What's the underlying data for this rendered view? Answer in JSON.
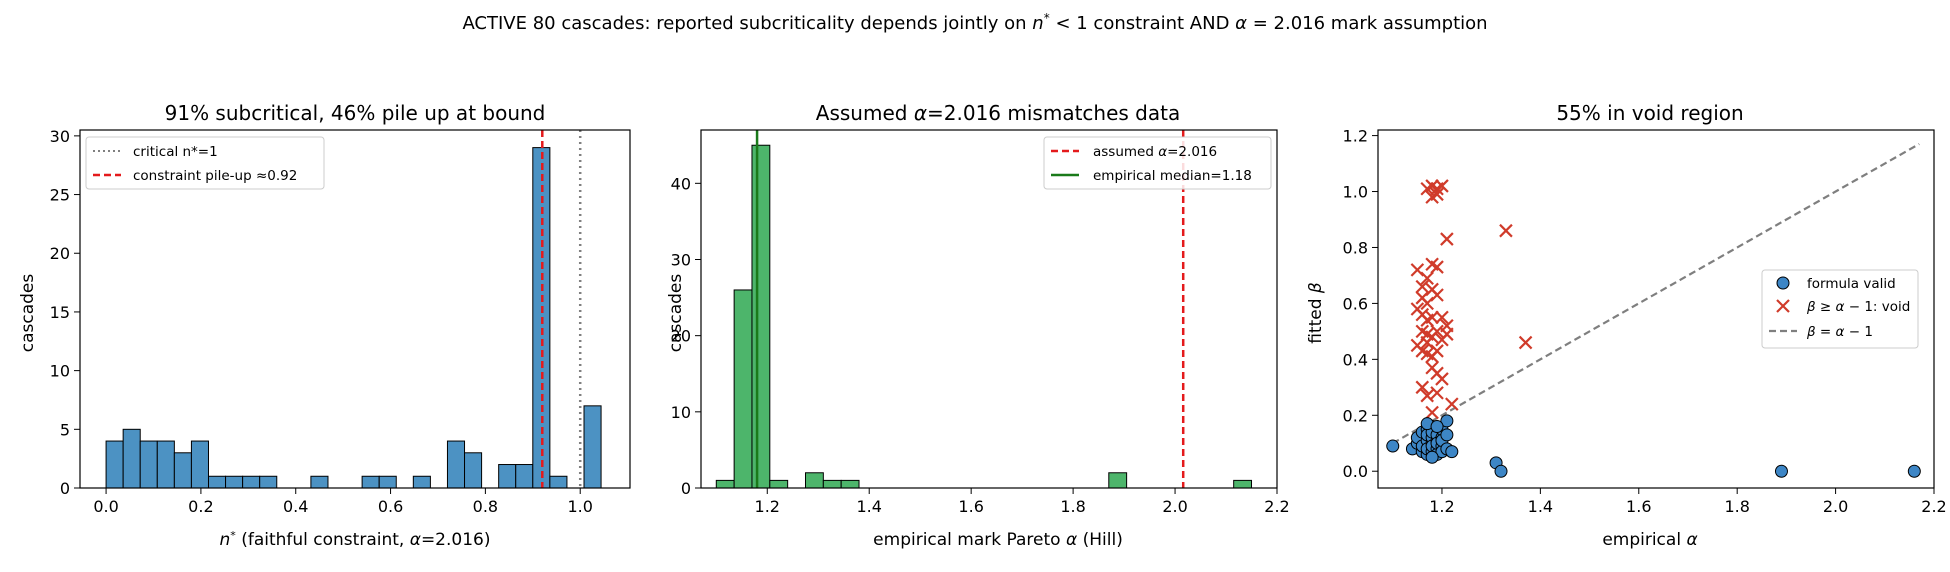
{
  "figure": {
    "title_parts": [
      "ACTIVE 80 cascades: reported subcriticality depends jointly on ",
      "n",
      "*",
      " < 1 constraint AND ",
      "α",
      " = 2.016 mark assumption"
    ]
  },
  "chart_data": [
    {
      "type": "bar",
      "title": "91% subcritical, 46% pile up at bound",
      "xlabel_parts": [
        "n",
        "*",
        " (faithful constraint, ",
        "α",
        "=2.016)"
      ],
      "ylabel": "cascades",
      "xlim": [
        -0.055,
        1.105
      ],
      "ylim": [
        0,
        30.5
      ],
      "xticks": [
        0.0,
        0.2,
        0.4,
        0.6,
        0.8,
        1.0
      ],
      "xtick_labels": [
        "0.0",
        "0.2",
        "0.4",
        "0.6",
        "0.8",
        "1.0"
      ],
      "yticks": [
        0,
        5,
        10,
        15,
        20,
        25,
        30
      ],
      "ytick_labels": [
        "0",
        "5",
        "10",
        "15",
        "20",
        "25",
        "30"
      ],
      "bar_color": "#4c92c3",
      "bins": [
        {
          "x0": 0.0,
          "x1": 0.036,
          "count": 4
        },
        {
          "x0": 0.036,
          "x1": 0.072,
          "count": 5
        },
        {
          "x0": 0.072,
          "x1": 0.108,
          "count": 4
        },
        {
          "x0": 0.108,
          "x1": 0.144,
          "count": 4
        },
        {
          "x0": 0.144,
          "x1": 0.18,
          "count": 3
        },
        {
          "x0": 0.18,
          "x1": 0.216,
          "count": 4
        },
        {
          "x0": 0.216,
          "x1": 0.252,
          "count": 1
        },
        {
          "x0": 0.252,
          "x1": 0.288,
          "count": 1
        },
        {
          "x0": 0.288,
          "x1": 0.324,
          "count": 1
        },
        {
          "x0": 0.324,
          "x1": 0.36,
          "count": 1
        },
        {
          "x0": 0.432,
          "x1": 0.468,
          "count": 1
        },
        {
          "x0": 0.54,
          "x1": 0.576,
          "count": 1
        },
        {
          "x0": 0.576,
          "x1": 0.612,
          "count": 1
        },
        {
          "x0": 0.648,
          "x1": 0.684,
          "count": 1
        },
        {
          "x0": 0.72,
          "x1": 0.756,
          "count": 4
        },
        {
          "x0": 0.756,
          "x1": 0.792,
          "count": 3
        },
        {
          "x0": 0.828,
          "x1": 0.864,
          "count": 2
        },
        {
          "x0": 0.864,
          "x1": 0.9,
          "count": 2
        },
        {
          "x0": 0.9,
          "x1": 0.936,
          "count": 29
        },
        {
          "x0": 0.936,
          "x1": 0.972,
          "count": 1
        },
        {
          "x0": 1.008,
          "x1": 1.044,
          "count": 7
        }
      ],
      "reference_lines": [
        {
          "x": 1.0,
          "style": "dotted",
          "color": "#808080",
          "label": "critical n*=1"
        },
        {
          "x": 0.92,
          "style": "dashed",
          "color": "#e41a1c",
          "label": "constraint pile-up ≈0.92"
        }
      ],
      "legend": "upper-left"
    },
    {
      "type": "bar",
      "title_parts": [
        "Assumed ",
        "α",
        "=2.016 mismatches data"
      ],
      "xlabel_parts": [
        "empirical mark Pareto ",
        "α",
        " (Hill)"
      ],
      "ylabel": "cascades",
      "xlim": [
        1.07,
        2.2
      ],
      "ylim": [
        0,
        47
      ],
      "xticks": [
        1.2,
        1.4,
        1.6,
        1.8,
        2.0,
        2.2
      ],
      "xtick_labels": [
        "1.2",
        "1.4",
        "1.6",
        "1.8",
        "2.0",
        "2.2"
      ],
      "yticks": [
        0,
        10,
        20,
        30,
        40
      ],
      "ytick_labels": [
        "0",
        "10",
        "20",
        "30",
        "40"
      ],
      "bar_color": "#4db56b",
      "bins": [
        {
          "x0": 1.1,
          "x1": 1.135,
          "count": 1
        },
        {
          "x0": 1.135,
          "x1": 1.17,
          "count": 26
        },
        {
          "x0": 1.17,
          "x1": 1.205,
          "count": 45
        },
        {
          "x0": 1.205,
          "x1": 1.24,
          "count": 1
        },
        {
          "x0": 1.275,
          "x1": 1.31,
          "count": 2
        },
        {
          "x0": 1.31,
          "x1": 1.345,
          "count": 1
        },
        {
          "x0": 1.345,
          "x1": 1.38,
          "count": 1
        },
        {
          "x0": 1.87,
          "x1": 1.905,
          "count": 2
        },
        {
          "x0": 2.115,
          "x1": 2.15,
          "count": 1
        }
      ],
      "reference_lines": [
        {
          "x": 2.016,
          "style": "dashed",
          "color": "#e41a1c",
          "label_parts": [
            "assumed ",
            "α",
            "=2.016"
          ]
        },
        {
          "x": 1.18,
          "style": "solid",
          "color": "#1a7a1a",
          "label": "empirical median=1.18"
        }
      ],
      "legend": "upper-right"
    },
    {
      "type": "scatter",
      "title": "55% in void region",
      "xlabel_parts": [
        "empirical ",
        "α"
      ],
      "ylabel_parts": [
        "fitted ",
        "β"
      ],
      "xlim": [
        1.07,
        2.2
      ],
      "ylim": [
        -0.06,
        1.22
      ],
      "xticks": [
        1.2,
        1.4,
        1.6,
        1.8,
        2.0,
        2.2
      ],
      "xtick_labels": [
        "1.2",
        "1.4",
        "1.6",
        "1.8",
        "2.0",
        "2.2"
      ],
      "yticks": [
        0.0,
        0.2,
        0.4,
        0.6,
        0.8,
        1.0,
        1.2
      ],
      "ytick_labels": [
        "0.0",
        "0.2",
        "0.4",
        "0.6",
        "0.8",
        "1.0",
        "1.2"
      ],
      "series": [
        {
          "name": "formula valid",
          "marker": "circle",
          "color": "#3d86c6",
          "points": [
            [
              1.1,
              0.09
            ],
            [
              1.14,
              0.08
            ],
            [
              1.15,
              0.1
            ],
            [
              1.15,
              0.12
            ],
            [
              1.16,
              0.07
            ],
            [
              1.16,
              0.14
            ],
            [
              1.16,
              0.09
            ],
            [
              1.17,
              0.11
            ],
            [
              1.17,
              0.06
            ],
            [
              1.17,
              0.15
            ],
            [
              1.17,
              0.13
            ],
            [
              1.17,
              0.08
            ],
            [
              1.18,
              0.1
            ],
            [
              1.18,
              0.07
            ],
            [
              1.18,
              0.12
            ],
            [
              1.18,
              0.16
            ],
            [
              1.18,
              0.09
            ],
            [
              1.18,
              0.14
            ],
            [
              1.19,
              0.11
            ],
            [
              1.19,
              0.08
            ],
            [
              1.19,
              0.13
            ],
            [
              1.19,
              0.06
            ],
            [
              1.19,
              0.1
            ],
            [
              1.2,
              0.12
            ],
            [
              1.2,
              0.09
            ],
            [
              1.2,
              0.15
            ],
            [
              1.2,
              0.07
            ],
            [
              1.2,
              0.11
            ],
            [
              1.21,
              0.18
            ],
            [
              1.21,
              0.08
            ],
            [
              1.21,
              0.13
            ],
            [
              1.22,
              0.07
            ],
            [
              1.17,
              0.17
            ],
            [
              1.18,
              0.05
            ],
            [
              1.19,
              0.16
            ],
            [
              1.31,
              0.03
            ],
            [
              1.32,
              0.0
            ],
            [
              1.89,
              0.0
            ],
            [
              2.16,
              0.0
            ]
          ]
        },
        {
          "name_parts": [
            "β",
            " ≥ ",
            "α",
            " − 1: void"
          ],
          "marker": "x",
          "color": "#d03b2a",
          "points": [
            [
              1.17,
              1.01
            ],
            [
              1.18,
              1.02
            ],
            [
              1.19,
              1.01
            ],
            [
              1.2,
              1.02
            ],
            [
              1.18,
              0.98
            ],
            [
              1.19,
              0.99
            ],
            [
              1.21,
              0.83
            ],
            [
              1.33,
              0.86
            ],
            [
              1.18,
              0.74
            ],
            [
              1.19,
              0.73
            ],
            [
              1.15,
              0.72
            ],
            [
              1.17,
              0.69
            ],
            [
              1.16,
              0.66
            ],
            [
              1.18,
              0.65
            ],
            [
              1.19,
              0.63
            ],
            [
              1.16,
              0.62
            ],
            [
              1.17,
              0.6
            ],
            [
              1.15,
              0.58
            ],
            [
              1.16,
              0.56
            ],
            [
              1.17,
              0.54
            ],
            [
              1.18,
              0.55
            ],
            [
              1.2,
              0.55
            ],
            [
              1.21,
              0.52
            ],
            [
              1.16,
              0.5
            ],
            [
              1.17,
              0.49
            ],
            [
              1.18,
              0.48
            ],
            [
              1.19,
              0.5
            ],
            [
              1.21,
              0.49
            ],
            [
              1.2,
              0.47
            ],
            [
              1.17,
              0.46
            ],
            [
              1.15,
              0.45
            ],
            [
              1.16,
              0.43
            ],
            [
              1.17,
              0.42
            ],
            [
              1.18,
              0.41
            ],
            [
              1.19,
              0.43
            ],
            [
              1.37,
              0.46
            ],
            [
              1.18,
              0.37
            ],
            [
              1.19,
              0.35
            ],
            [
              1.2,
              0.33
            ],
            [
              1.16,
              0.3
            ],
            [
              1.17,
              0.27
            ],
            [
              1.19,
              0.28
            ],
            [
              1.22,
              0.24
            ],
            [
              1.18,
              0.21
            ]
          ]
        },
        {
          "name_parts": [
            "β",
            " = ",
            "α",
            " − 1"
          ],
          "marker": "dashed-line",
          "color": "#7f7f7f",
          "points": [
            [
              1.1,
              0.1
            ],
            [
              2.17,
              1.17
            ]
          ]
        }
      ],
      "legend": "center-right"
    }
  ]
}
